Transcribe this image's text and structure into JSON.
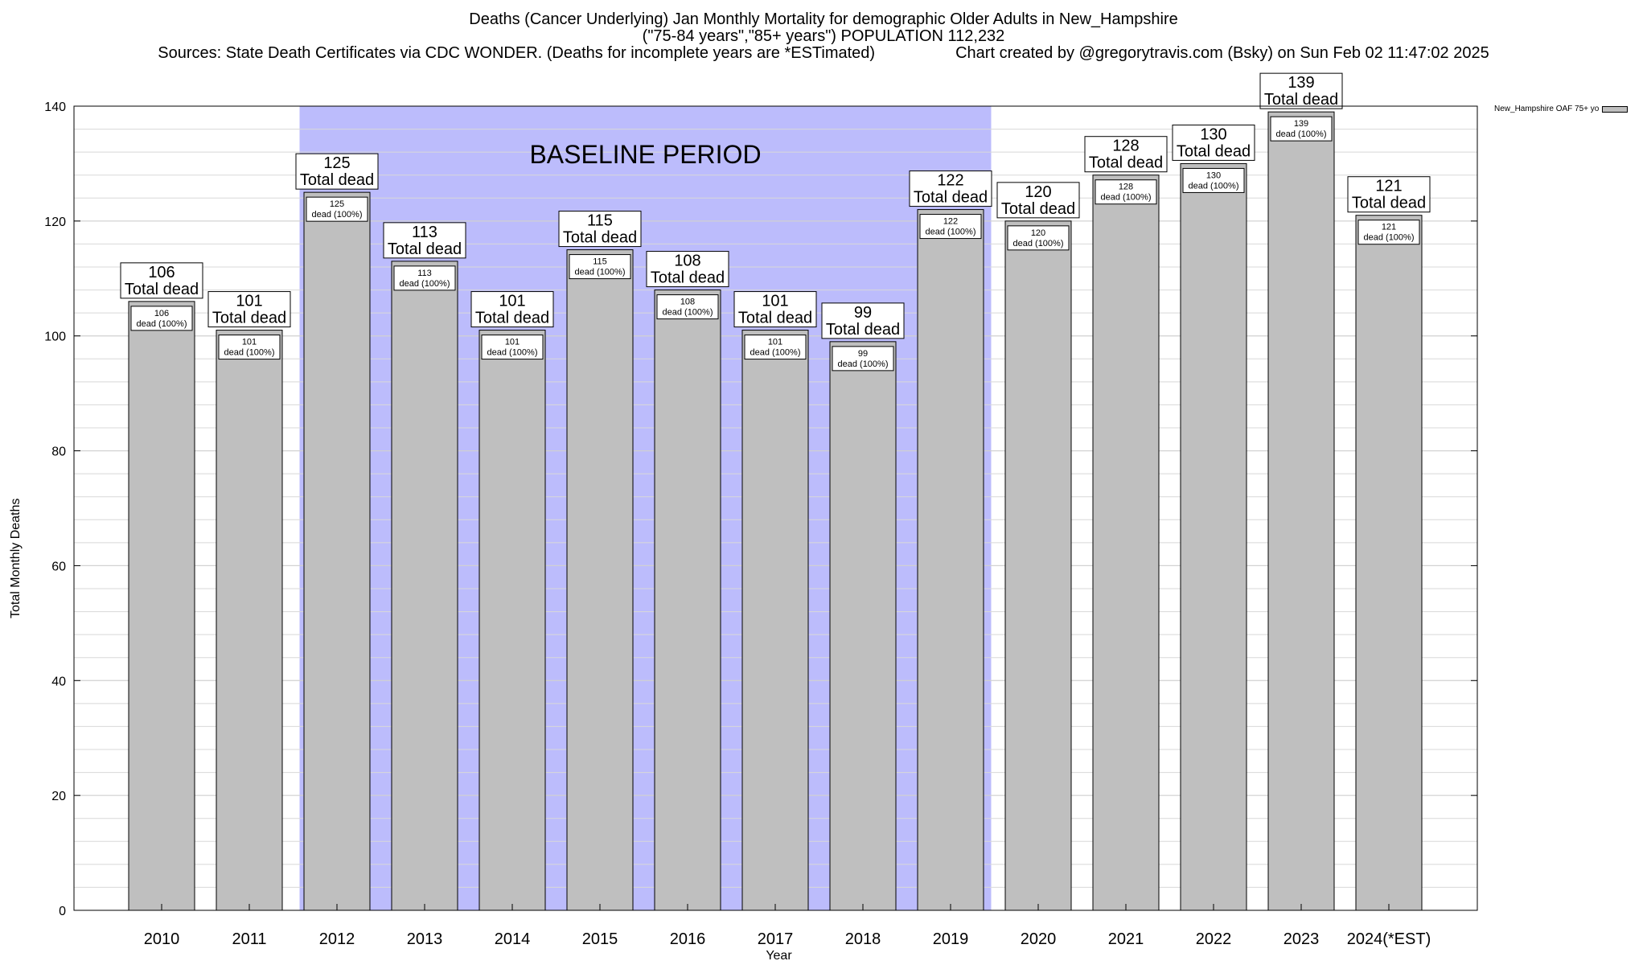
{
  "chart_data": {
    "type": "bar",
    "title": "Deaths (Cancer Underlying) Jan Monthly Mortality for demographic Older Adults in New_Hampshire",
    "subtitle": "(\"75-84 years\",\"85+ years\") POPULATION 112,232",
    "source_line": "Sources: State Death Certificates via CDC WONDER. (Deaths for incomplete years are *ESTimated)",
    "credit_line": "Chart created by @gregorytravis.com (Bsky) on Sun Feb 02 11:47:02 2025",
    "xlabel": "Year",
    "ylabel": "Total Monthly Deaths",
    "ylim": [
      0,
      140
    ],
    "yticks": [
      0,
      20,
      40,
      60,
      80,
      100,
      120,
      140
    ],
    "categories": [
      "2010",
      "2011",
      "2012",
      "2013",
      "2014",
      "2015",
      "2016",
      "2017",
      "2018",
      "2019",
      "2020",
      "2021",
      "2022",
      "2023",
      "2024(*EST)"
    ],
    "series": [
      {
        "name": "New_Hampshire OAF 75+ yo",
        "values": [
          106,
          101,
          125,
          113,
          101,
          115,
          108,
          101,
          99,
          122,
          120,
          128,
          130,
          139,
          121
        ],
        "color": "#bfbfbf"
      }
    ],
    "total_label_suffix": "Total dead",
    "inner_label_suffix": "dead (100%)",
    "baseline": {
      "label": "BASELINE PERIOD",
      "from": "2012",
      "to": "2019",
      "color": "#bcbcfc"
    },
    "grid": true,
    "legend_position": "top-right"
  }
}
